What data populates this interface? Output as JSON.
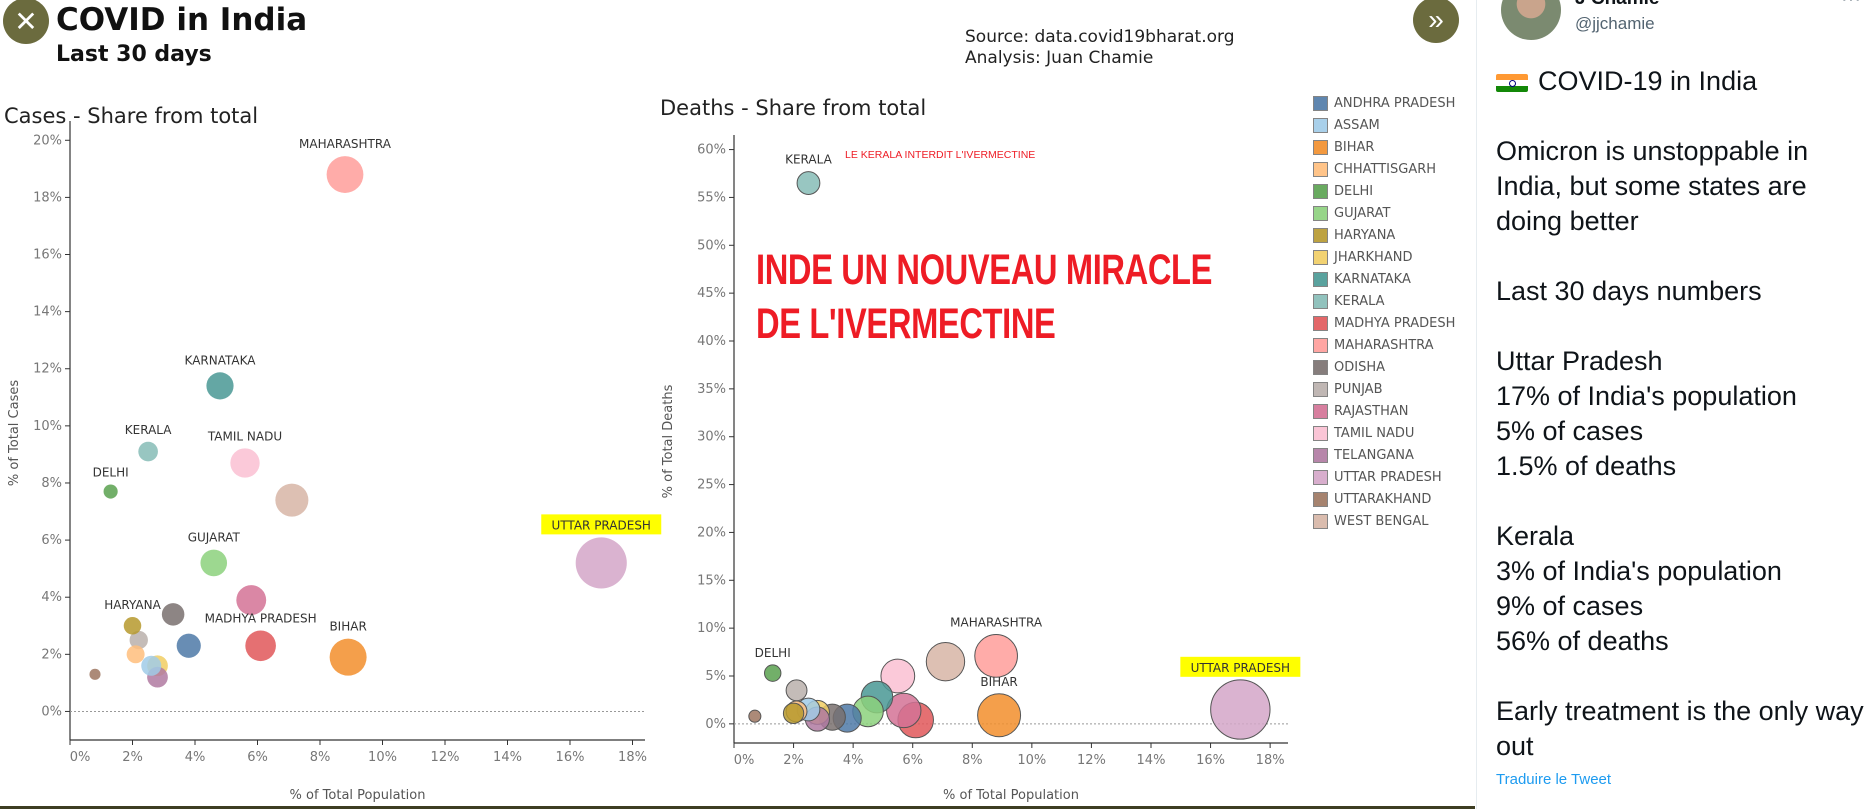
{
  "header": {
    "title": "COVID in India",
    "subtitle": "Last 30 days",
    "source": "Source: data.covid19bharat.org",
    "analysis": "Analysis:  Juan Chamie"
  },
  "overlay": {
    "headline_line1": "INDE UN NOUVEAU MIRACLE",
    "headline_line2": "DE L'IVERMECTINE",
    "annotation": "LE KERALA INTERDIT L'IVERMECTINE",
    "color": "#ee1c25"
  },
  "viewer": {
    "close_icon": "close-icon",
    "next_icon": "double-chevron-right-icon"
  },
  "legend": [
    {
      "name": "ANDHRA PRADESH",
      "color": "#4e79a7"
    },
    {
      "name": "ASSAM",
      "color": "#a0cbe8"
    },
    {
      "name": "BIHAR",
      "color": "#f28e2b"
    },
    {
      "name": "CHHATTISGARH",
      "color": "#ffbe7d"
    },
    {
      "name": "DELHI",
      "color": "#59a14f"
    },
    {
      "name": "GUJARAT",
      "color": "#8cd17d"
    },
    {
      "name": "HARYANA",
      "color": "#b6992d"
    },
    {
      "name": "JHARKHAND",
      "color": "#f1ce63"
    },
    {
      "name": "KARNATAKA",
      "color": "#499894"
    },
    {
      "name": "KERALA",
      "color": "#86bcb6"
    },
    {
      "name": "MADHYA PRADESH",
      "color": "#e15759"
    },
    {
      "name": "MAHARASHTRA",
      "color": "#ff9d9a"
    },
    {
      "name": "ODISHA",
      "color": "#79706e"
    },
    {
      "name": "PUNJAB",
      "color": "#bab0ac"
    },
    {
      "name": "RAJASTHAN",
      "color": "#d37295"
    },
    {
      "name": "TAMIL NADU",
      "color": "#fabfd2"
    },
    {
      "name": "TELANGANA",
      "color": "#b07aa1"
    },
    {
      "name": "UTTAR PRADESH",
      "color": "#d4a6c8"
    },
    {
      "name": "UTTARAKHAND",
      "color": "#9d7660"
    },
    {
      "name": "WEST BENGAL",
      "color": "#d7b5a6"
    }
  ],
  "chart_data": [
    {
      "type": "scatter",
      "title": "Cases - Share from total",
      "xlabel": "% of Total Population",
      "ylabel": "% of Total Cases",
      "xlim": [
        0,
        18.4
      ],
      "ylim": [
        -1,
        20.5
      ],
      "xticks": [
        0,
        2,
        4,
        6,
        8,
        10,
        12,
        14,
        16,
        18
      ],
      "yticks": [
        0,
        2,
        4,
        6,
        8,
        10,
        12,
        14,
        16,
        18,
        20
      ],
      "highlight": "UTTAR PRADESH",
      "points": [
        {
          "name": "ANDHRA PRADESH",
          "x": 3.8,
          "y": 2.3,
          "label": false
        },
        {
          "name": "ASSAM",
          "x": 2.6,
          "y": 1.6,
          "label": false
        },
        {
          "name": "BIHAR",
          "x": 8.9,
          "y": 1.9,
          "label": true
        },
        {
          "name": "CHHATTISGARH",
          "x": 2.1,
          "y": 2.0,
          "label": false
        },
        {
          "name": "DELHI",
          "x": 1.3,
          "y": 7.7,
          "label": true
        },
        {
          "name": "GUJARAT",
          "x": 4.6,
          "y": 5.2,
          "label": true
        },
        {
          "name": "HARYANA",
          "x": 2.0,
          "y": 3.0,
          "label": true
        },
        {
          "name": "JHARKHAND",
          "x": 2.8,
          "y": 1.6,
          "label": false
        },
        {
          "name": "KARNATAKA",
          "x": 4.8,
          "y": 11.4,
          "label": true
        },
        {
          "name": "KERALA",
          "x": 2.5,
          "y": 9.1,
          "label": true
        },
        {
          "name": "MADHYA PRADESH",
          "x": 6.1,
          "y": 2.3,
          "label": true
        },
        {
          "name": "MAHARASHTRA",
          "x": 8.8,
          "y": 18.8,
          "label": true
        },
        {
          "name": "ODISHA",
          "x": 3.3,
          "y": 3.4,
          "label": false
        },
        {
          "name": "PUNJAB",
          "x": 2.2,
          "y": 2.5,
          "label": false
        },
        {
          "name": "RAJASTHAN",
          "x": 5.8,
          "y": 3.9,
          "label": false
        },
        {
          "name": "TAMIL NADU",
          "x": 5.6,
          "y": 8.7,
          "label": true
        },
        {
          "name": "TELANGANA",
          "x": 2.8,
          "y": 1.2,
          "label": false
        },
        {
          "name": "UTTAR PRADESH",
          "x": 17.0,
          "y": 5.2,
          "label": true
        },
        {
          "name": "UTTARAKHAND",
          "x": 0.8,
          "y": 1.3,
          "label": false
        },
        {
          "name": "WEST BENGAL",
          "x": 7.1,
          "y": 7.4,
          "label": false
        }
      ]
    },
    {
      "type": "scatter",
      "title": "Deaths - Share from total",
      "xlabel": "% of Total Population",
      "ylabel": "% of Total Deaths",
      "xlim": [
        0,
        18.6
      ],
      "ylim": [
        -2,
        61
      ],
      "xticks": [
        0,
        2,
        4,
        6,
        8,
        10,
        12,
        14,
        16,
        18
      ],
      "yticks": [
        0,
        5,
        10,
        15,
        20,
        25,
        30,
        35,
        40,
        45,
        50,
        55,
        60
      ],
      "highlight": "UTTAR PRADESH",
      "points": [
        {
          "name": "ANDHRA PRADESH",
          "x": 3.8,
          "y": 0.6,
          "label": false
        },
        {
          "name": "ASSAM",
          "x": 2.5,
          "y": 1.5,
          "label": false
        },
        {
          "name": "BIHAR",
          "x": 8.9,
          "y": 0.9,
          "label": true
        },
        {
          "name": "CHHATTISGARH",
          "x": 2.1,
          "y": 1.3,
          "label": false
        },
        {
          "name": "DELHI",
          "x": 1.3,
          "y": 5.3,
          "label": true
        },
        {
          "name": "GUJARAT",
          "x": 4.5,
          "y": 1.3,
          "label": false
        },
        {
          "name": "HARYANA",
          "x": 2.0,
          "y": 1.1,
          "label": false
        },
        {
          "name": "JHARKHAND",
          "x": 2.8,
          "y": 1.2,
          "label": false
        },
        {
          "name": "KARNATAKA",
          "x": 4.8,
          "y": 2.8,
          "label": false
        },
        {
          "name": "KERALA",
          "x": 2.5,
          "y": 56.5,
          "label": true
        },
        {
          "name": "MADHYA PRADESH",
          "x": 6.1,
          "y": 0.4,
          "label": false
        },
        {
          "name": "MAHARASHTRA",
          "x": 8.8,
          "y": 7.1,
          "label": true
        },
        {
          "name": "ODISHA",
          "x": 3.3,
          "y": 0.7,
          "label": false
        },
        {
          "name": "PUNJAB",
          "x": 2.1,
          "y": 3.5,
          "label": false
        },
        {
          "name": "RAJASTHAN",
          "x": 5.7,
          "y": 1.4,
          "label": false
        },
        {
          "name": "TAMIL NADU",
          "x": 5.5,
          "y": 5.0,
          "label": false
        },
        {
          "name": "TELANGANA",
          "x": 2.8,
          "y": 0.5,
          "label": false
        },
        {
          "name": "UTTAR PRADESH",
          "x": 17.0,
          "y": 1.5,
          "label": true
        },
        {
          "name": "UTTARAKHAND",
          "x": 0.7,
          "y": 0.8,
          "label": false
        },
        {
          "name": "WEST BENGAL",
          "x": 7.1,
          "y": 6.5,
          "label": false
        }
      ]
    }
  ],
  "tweet": {
    "author_name": "J Chamie",
    "handle": "@jjchamie",
    "more_icon": "more-icon",
    "heading": "COVID-19 in India",
    "para1": "Omicron is unstoppable in India, but some states are doing better",
    "para2": "Last 30 days numbers",
    "up_title": "Uttar Pradesh",
    "up_pop": "17% of India's population",
    "up_cases": "5% of cases",
    "up_deaths": "1.5% of deaths",
    "kerala_title": "Kerala",
    "kerala_pop": "3% of India's population",
    "kerala_cases": "9% of cases",
    "kerala_deaths": "56% of deaths",
    "para5": "Early treatment is the only way out",
    "translate": "Traduire le Tweet"
  }
}
